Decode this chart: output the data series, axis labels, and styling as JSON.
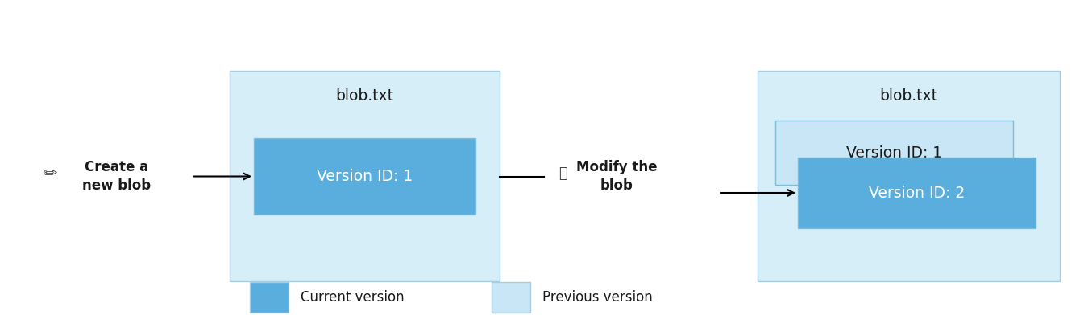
{
  "bg_color": "#ffffff",
  "light_blue_container": "#d6eef8",
  "current_version_color": "#5aaedd",
  "previous_version_color": "#c8e6f5",
  "container_border_color": "#a8cce0",
  "version_box_border_color": "#80bcd8",
  "text_color": "#1a1a1a",
  "blob_label": "blob.txt",
  "version1_label": "Version ID: 1",
  "version2_label": "Version ID: 2",
  "create_label": "Create a\nnew blob",
  "modify_label": "Modify the\nblob",
  "legend_current": "Current version",
  "legend_previous": "Previous version",
  "figsize": [
    13.5,
    3.92
  ],
  "dpi": 100
}
